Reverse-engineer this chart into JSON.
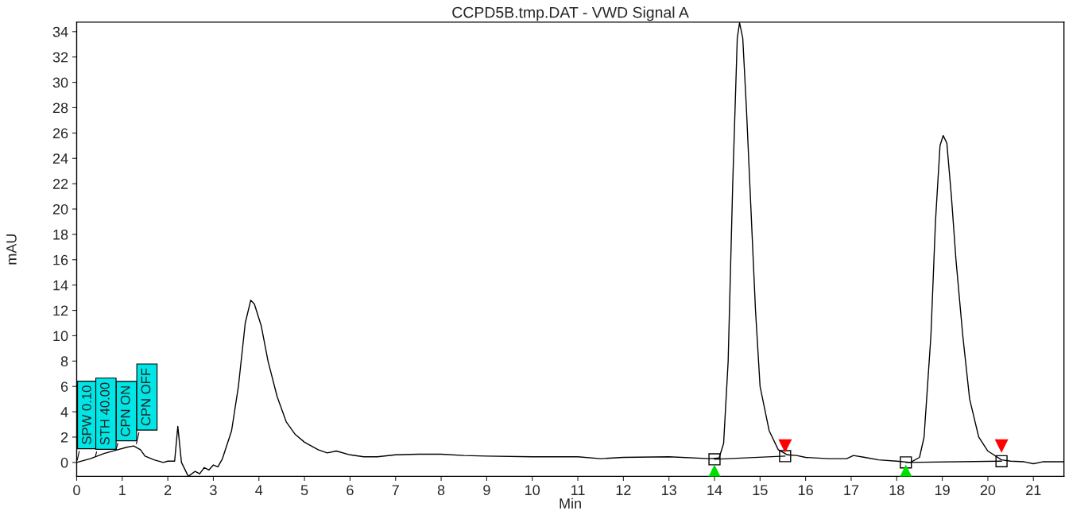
{
  "chart_data": {
    "type": "line",
    "title": "CCPD5B.tmp.DAT - VWD Signal A",
    "xlabel": "Min",
    "ylabel": "mAU",
    "xlim": [
      0,
      21.67
    ],
    "xticks": [
      0,
      1,
      2,
      3,
      4,
      5,
      6,
      7,
      8,
      9,
      10,
      11,
      12,
      13,
      14,
      15,
      16,
      17,
      18,
      19,
      20,
      21
    ],
    "ylim": [
      -1.1,
      34.75
    ],
    "yticks": [
      0,
      2,
      4,
      6,
      8,
      10,
      12,
      14,
      16,
      18,
      20,
      22,
      24,
      26,
      28,
      30,
      32,
      34
    ],
    "grid": false,
    "legend": false,
    "series": [
      {
        "color": "#000000",
        "marker": "none",
        "x": [
          0,
          0.3,
          0.6,
          0.9,
          1.1,
          1.25,
          1.4,
          1.5,
          1.7,
          1.9,
          2.0,
          2.15,
          2.22,
          2.3,
          2.45,
          2.6,
          2.7,
          2.8,
          2.9,
          3.0,
          3.1,
          3.2,
          3.4,
          3.55,
          3.7,
          3.82,
          3.9,
          4.05,
          4.2,
          4.4,
          4.6,
          4.8,
          5.0,
          5.3,
          5.5,
          5.7,
          6.0,
          6.3,
          6.6,
          7.0,
          7.5,
          8.0,
          8.5,
          9.0,
          10,
          11,
          11.5,
          12,
          13,
          13.9,
          14.1,
          14.2,
          14.3,
          14.4,
          14.5,
          14.55,
          14.62,
          14.7,
          14.8,
          14.9,
          15.0,
          15.2,
          15.4,
          15.6,
          15.8,
          16.0,
          16.5,
          16.9,
          17.05,
          17.3,
          17.6,
          18.0,
          18.3,
          18.5,
          18.6,
          18.75,
          18.85,
          18.95,
          19.02,
          19.1,
          19.2,
          19.3,
          19.45,
          19.6,
          19.8,
          20.0,
          20.3,
          20.5,
          20.8,
          21.0,
          21.2,
          21.67
        ],
        "values": [
          0,
          0.3,
          0.7,
          1.0,
          1.2,
          1.3,
          1.0,
          0.5,
          0.2,
          0.0,
          0.1,
          0.1,
          2.85,
          0.0,
          -1.1,
          -0.7,
          -0.9,
          -0.4,
          -0.6,
          -0.2,
          -0.35,
          0.3,
          2.5,
          6,
          11,
          12.8,
          12.5,
          10.8,
          8,
          5.2,
          3.2,
          2.2,
          1.6,
          1.0,
          0.75,
          0.9,
          0.6,
          0.45,
          0.45,
          0.6,
          0.65,
          0.65,
          0.55,
          0.5,
          0.45,
          0.45,
          0.3,
          0.4,
          0.45,
          0.3,
          0.35,
          1.5,
          8,
          22,
          33.5,
          34.7,
          33.5,
          28,
          20,
          12,
          6,
          2.5,
          1.0,
          0.6,
          0.55,
          0.4,
          0.3,
          0.3,
          0.55,
          0.4,
          0.2,
          0.1,
          0.0,
          0.4,
          2,
          10,
          19,
          25,
          25.8,
          25.2,
          21,
          16,
          10,
          5,
          2,
          0.9,
          0.2,
          0.1,
          0.05,
          -0.1,
          0.05,
          0.05
        ]
      },
      {
        "type": "line",
        "color": "#000000",
        "marker": "square",
        "x": [
          14.0,
          15.55
        ],
        "values": [
          0.25,
          0.5
        ]
      },
      {
        "type": "line",
        "color": "#000000",
        "marker": "square",
        "x": [
          18.2,
          20.3
        ],
        "values": [
          0.0,
          0.1
        ]
      },
      {
        "type": "scatter",
        "color": "#00e000",
        "marker": "triangle",
        "x": [
          14.0,
          18.2
        ],
        "values": [
          -0.7,
          -0.7
        ]
      },
      {
        "type": "scatter",
        "color": "#ff0000",
        "marker": "triangle_down",
        "x": [
          15.55,
          20.3
        ],
        "values": [
          1.3,
          1.3
        ]
      }
    ],
    "annotations": [
      {
        "text": "SPW 0.10",
        "x": 0.0,
        "y": 0.0
      },
      {
        "text": "STH 40.00",
        "x": 0.4,
        "y": 0.3
      },
      {
        "text": "CPN ON",
        "x": 0.85,
        "y": 0.8
      },
      {
        "text": "CPN OFF",
        "x": 1.3,
        "y": 1.3
      }
    ]
  }
}
